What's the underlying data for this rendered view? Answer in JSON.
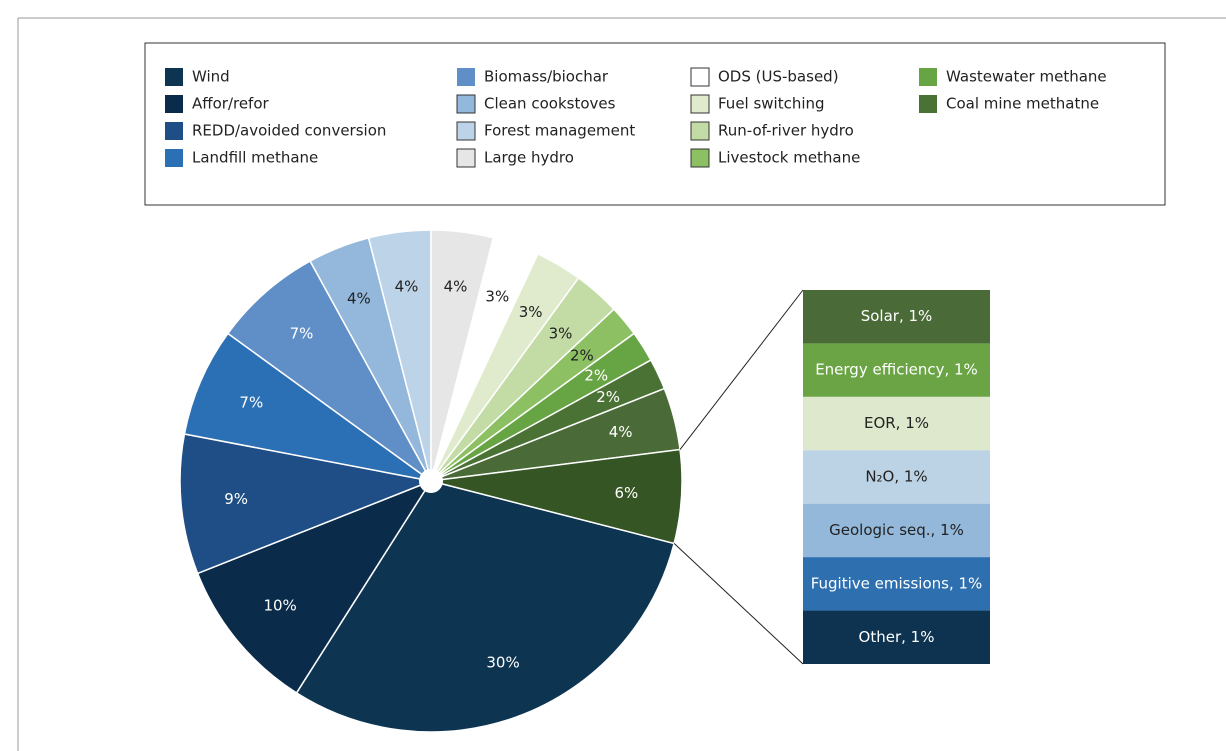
{
  "chart_data": {
    "type": "pie",
    "categories": [
      "Wind",
      "Affor/refor",
      "REDD/avoided conversion",
      "Landfill methane",
      "Biomass/biochar",
      "Clean cookstoves",
      "Forest management",
      "Large hydro",
      "ODS (US-based)",
      "Fuel switching",
      "Run-of-river hydro",
      "Livestock methane",
      "Wastewater methane",
      "Coal mine methatne",
      null,
      null
    ],
    "values": [
      30,
      10,
      9,
      7,
      7,
      4,
      4,
      4,
      3,
      3,
      3,
      2,
      2,
      2,
      4,
      6
    ],
    "value_labels": [
      "30%",
      "10%",
      "9%",
      "7%",
      "7%",
      "4%",
      "4%",
      "4%",
      "3%",
      "3%",
      "3%",
      "2%",
      "2%",
      "2%",
      "4%",
      "6%"
    ],
    "colors": [
      "#0d3552",
      "#0a2b4a",
      "#1f4e86",
      "#2b6fb4",
      "#5f8fc6",
      "#93b8dc",
      "#bdd4e8",
      "#e6e6e6",
      "#ffffff",
      "#e0ebcd",
      "#c3dba5",
      "#8dc063",
      "#67a544",
      "#4b7235",
      "#4a6b37",
      "#355524"
    ],
    "bar_of_pie": {
      "categories": [
        "Solar",
        "Energy efficiency",
        "EOR",
        "N₂O",
        "Geologic seq.",
        "Fugitive emissions",
        "Other"
      ],
      "values": [
        1,
        1,
        1,
        1,
        1,
        1,
        1
      ],
      "value_labels": [
        "Solar, 1%",
        "Energy efficiency, 1%",
        "EOR, 1%",
        "N₂O, 1%",
        "Geologic seq., 1%",
        "Fugitive emissions, 1%",
        "Other, 1%"
      ],
      "colors": [
        "#4a6b37",
        "#6aa444",
        "#dde8cc",
        "#bcd3e6",
        "#93b8da",
        "#2e6fb0",
        "#0d3350"
      ]
    }
  }
}
